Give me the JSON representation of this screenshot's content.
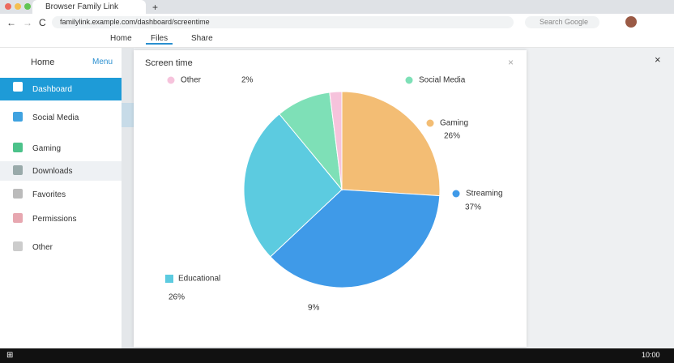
{
  "browser": {
    "tab_title": "Browser Family Link",
    "url": "familylink.example.com/dashboard/screentime",
    "search": "Search Google",
    "toolbar_tabs": [
      "Home",
      "Files",
      "Share"
    ]
  },
  "sidebar": {
    "app_name": "Home",
    "app_badge": "Menu",
    "items": [
      "Dashboard",
      "Social Media",
      "Gaming",
      "Downloads",
      "Favorites",
      "Permissions",
      "Other"
    ]
  },
  "taskbar": {
    "time": "10:00"
  },
  "chart_data": {
    "type": "pie",
    "title": "Screen time",
    "categories": [
      "Gaming",
      "Streaming",
      "Educational",
      "Social Media",
      "Other"
    ],
    "values": [
      26,
      37,
      26,
      9,
      2
    ],
    "value_labels": [
      "26%",
      "37%",
      "26%",
      "9%",
      "2%"
    ],
    "colors": [
      "#f3bd74",
      "#3f9ae8",
      "#5ccbe0",
      "#7ee0b7",
      "#f6c3dc"
    ]
  }
}
